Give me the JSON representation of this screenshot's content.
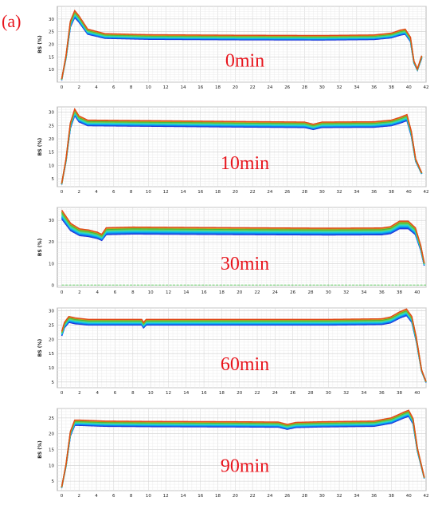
{
  "figure_label": "(a)",
  "chart_data": [
    {
      "type": "line",
      "annotation": "0min",
      "ylabel": "BS (%)",
      "x_ticks": [
        0,
        2,
        4,
        6,
        8,
        10,
        12,
        14,
        16,
        18,
        20,
        22,
        24,
        26,
        28,
        30,
        32,
        34,
        36,
        38,
        40,
        42
      ],
      "y_ticks": [
        10,
        15,
        20,
        25,
        30
      ],
      "xlim": [
        -0.5,
        42
      ],
      "ylim": [
        5,
        35
      ],
      "profile": [
        [
          0,
          6
        ],
        [
          0.5,
          15
        ],
        [
          1,
          28
        ],
        [
          1.5,
          32
        ],
        [
          2,
          30
        ],
        [
          3,
          25
        ],
        [
          5,
          23.3
        ],
        [
          10,
          22.9
        ],
        [
          20,
          22.7
        ],
        [
          30,
          22.6
        ],
        [
          36,
          22.8
        ],
        [
          38,
          23.5
        ],
        [
          39,
          24.6
        ],
        [
          39.6,
          25
        ],
        [
          40.2,
          22
        ],
        [
          40.6,
          13
        ],
        [
          41,
          10
        ],
        [
          41.5,
          15
        ]
      ],
      "series_offsets": [
        1.5,
        -1.5
      ]
    },
    {
      "type": "line",
      "annotation": "10min",
      "ylabel": "BS (%)",
      "x_ticks": [
        0,
        2,
        4,
        6,
        8,
        10,
        12,
        14,
        16,
        18,
        20,
        22,
        24,
        26,
        28,
        30,
        32,
        34,
        36,
        38,
        40,
        42
      ],
      "y_ticks": [
        5,
        10,
        15,
        20,
        25,
        30
      ],
      "xlim": [
        -0.5,
        42
      ],
      "ylim": [
        2,
        32
      ],
      "profile": [
        [
          0,
          3
        ],
        [
          0.5,
          12
        ],
        [
          1,
          25
        ],
        [
          1.5,
          30
        ],
        [
          2,
          27.5
        ],
        [
          3,
          26
        ],
        [
          10,
          25.8
        ],
        [
          20,
          25.5
        ],
        [
          28,
          25.3
        ],
        [
          29,
          24.5
        ],
        [
          30,
          25.3
        ],
        [
          36,
          25.4
        ],
        [
          38,
          26
        ],
        [
          39,
          27
        ],
        [
          39.8,
          28
        ],
        [
          40.3,
          22
        ],
        [
          40.8,
          12
        ],
        [
          41.5,
          7
        ]
      ],
      "series_offsets": [
        1.3,
        -1.3
      ]
    },
    {
      "type": "line",
      "annotation": "30min",
      "ylabel": "BS (%)",
      "x_ticks": [
        0,
        2,
        4,
        6,
        8,
        10,
        12,
        14,
        16,
        18,
        20,
        22,
        24,
        26,
        28,
        30,
        32,
        34,
        36,
        38,
        40
      ],
      "y_ticks": [
        0,
        10,
        20,
        30
      ],
      "xlim": [
        -0.5,
        41
      ],
      "ylim": [
        -1,
        36
      ],
      "profile": [
        [
          0,
          34
        ],
        [
          0.5,
          31
        ],
        [
          1,
          28
        ],
        [
          2,
          25.5
        ],
        [
          3,
          25
        ],
        [
          4,
          24
        ],
        [
          4.5,
          23
        ],
        [
          5,
          26
        ],
        [
          8,
          26.3
        ],
        [
          20,
          26
        ],
        [
          30,
          25.8
        ],
        [
          36,
          25.9
        ],
        [
          37,
          26.5
        ],
        [
          38,
          29
        ],
        [
          39,
          29
        ],
        [
          39.8,
          26
        ],
        [
          40.4,
          18
        ],
        [
          40.8,
          10
        ]
      ],
      "series_offsets": [
        0.8,
        -3.5
      ]
    },
    {
      "type": "line",
      "annotation": "60min",
      "ylabel": "BS (%)",
      "x_ticks": [
        0,
        2,
        4,
        6,
        8,
        10,
        12,
        14,
        16,
        18,
        20,
        22,
        24,
        26,
        28,
        30,
        32,
        34,
        36,
        38,
        40
      ],
      "y_ticks": [
        5,
        10,
        15,
        20,
        25,
        30
      ],
      "xlim": [
        -0.5,
        41
      ],
      "ylim": [
        3,
        31
      ],
      "profile": [
        [
          0,
          22
        ],
        [
          0.3,
          25
        ],
        [
          0.8,
          27
        ],
        [
          1.5,
          26.5
        ],
        [
          3,
          26
        ],
        [
          9,
          26
        ],
        [
          9.2,
          25
        ],
        [
          9.5,
          26
        ],
        [
          20,
          26
        ],
        [
          30,
          26
        ],
        [
          36,
          26.2
        ],
        [
          37,
          26.8
        ],
        [
          38,
          28.5
        ],
        [
          38.8,
          29.5
        ],
        [
          39.4,
          27
        ],
        [
          39.9,
          20
        ],
        [
          40.5,
          9
        ],
        [
          41,
          5
        ]
      ],
      "series_offsets": [
        1.2,
        -1.2
      ]
    },
    {
      "type": "line",
      "annotation": "90min",
      "ylabel": "BS (%)",
      "x_ticks": [
        0,
        2,
        4,
        6,
        8,
        10,
        12,
        14,
        16,
        18,
        20,
        22,
        24,
        26,
        28,
        30,
        32,
        34,
        36,
        38,
        40,
        42
      ],
      "y_ticks": [
        5,
        10,
        15,
        20,
        25
      ],
      "xlim": [
        -0.5,
        42
      ],
      "ylim": [
        2,
        28
      ],
      "profile": [
        [
          0,
          3
        ],
        [
          0.5,
          10
        ],
        [
          1,
          20
        ],
        [
          1.5,
          23.5
        ],
        [
          2,
          23.5
        ],
        [
          5,
          23.2
        ],
        [
          10,
          23.1
        ],
        [
          20,
          23
        ],
        [
          25,
          22.9
        ],
        [
          26,
          22.2
        ],
        [
          27,
          22.8
        ],
        [
          30,
          23
        ],
        [
          36,
          23.2
        ],
        [
          38,
          24.2
        ],
        [
          39.5,
          26
        ],
        [
          40,
          26.5
        ],
        [
          40.5,
          24
        ],
        [
          41,
          15
        ],
        [
          41.8,
          6
        ]
      ],
      "series_offsets": [
        1,
        -1
      ]
    }
  ]
}
